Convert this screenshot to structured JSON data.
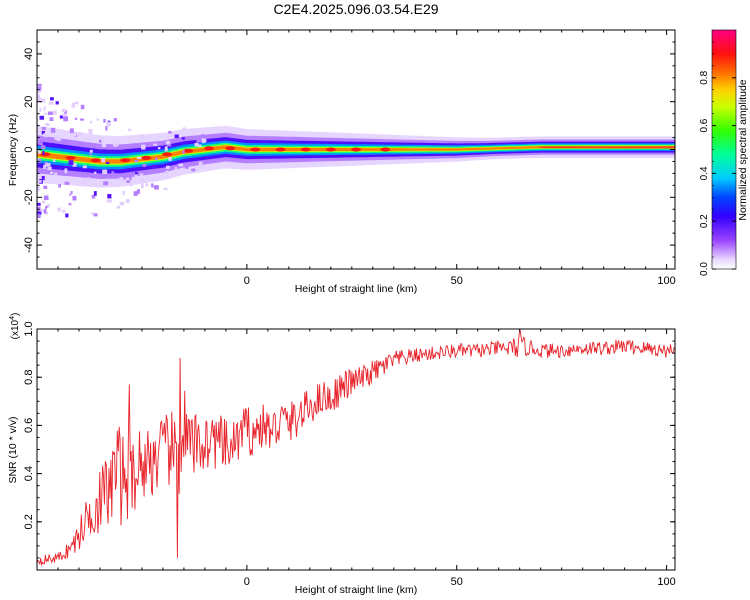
{
  "title": "C2E4.2025.096.03.54.E29",
  "chart_data": [
    {
      "type": "heatmap",
      "xlabel": "Height of straight line (km)",
      "ylabel": "Frequency (Hz)",
      "xlim": [
        -50,
        102
      ],
      "ylim": [
        -50,
        50
      ],
      "xticks": [
        0,
        50,
        100
      ],
      "yticks": [
        -40,
        -20,
        0,
        20,
        40
      ],
      "colorbar": {
        "label": "Normalized spectral amplitude",
        "range": [
          0,
          1
        ],
        "ticks": [
          "0.0",
          "0.2",
          "0.4",
          "0.6",
          "0.8"
        ],
        "colors": [
          "#ffffff",
          "#cc99ff",
          "#6600ff",
          "#0000ff",
          "#00ffff",
          "#00ff00",
          "#ffff00",
          "#ff8000",
          "#ff0000",
          "#ff0099"
        ]
      },
      "ridge": {
        "x": [
          -50,
          -45,
          -40,
          -35,
          -30,
          -25,
          -20,
          -15,
          -10,
          -5,
          0,
          5,
          10,
          20,
          30,
          40,
          50,
          60,
          70,
          80,
          90,
          102
        ],
        "freq": [
          -2,
          -3,
          -4,
          -5,
          -5,
          -4,
          -3,
          -1,
          0,
          1,
          0,
          0,
          0,
          0,
          0,
          0,
          0,
          0.5,
          1,
          1,
          1,
          1
        ]
      }
    },
    {
      "type": "line",
      "xlabel": "Height of straight line (km)",
      "ylabel": "SNR (10 * v/v)",
      "y_multiplier": "(x10",
      "y_multiplier_exp": "4",
      "y_multiplier_close": ")",
      "xlim": [
        -50,
        102
      ],
      "ylim": [
        0,
        1.0
      ],
      "xticks": [
        0,
        50,
        100
      ],
      "yticks": [
        "0.2",
        "0.4",
        "0.6",
        "0.8",
        "1.0"
      ],
      "series": [
        {
          "color": "#e8232a",
          "x": [
            -50,
            -45,
            -42,
            -40,
            -38,
            -36,
            -34,
            -32,
            -31,
            -30,
            -28,
            -26,
            -24,
            -22,
            -20,
            -18,
            -16,
            -15,
            -14,
            -12,
            -10,
            -8,
            -6,
            -4,
            -2,
            0,
            2,
            4,
            6,
            8,
            10,
            12,
            15,
            18,
            20,
            22,
            25,
            28,
            30,
            35,
            40,
            45,
            50,
            55,
            60,
            63,
            65,
            68,
            70,
            75,
            80,
            85,
            90,
            95,
            100,
            102
          ],
          "mean": [
            0.04,
            0.05,
            0.09,
            0.14,
            0.22,
            0.28,
            0.3,
            0.36,
            0.45,
            0.38,
            0.4,
            0.43,
            0.45,
            0.46,
            0.48,
            0.5,
            0.46,
            0.6,
            0.5,
            0.52,
            0.53,
            0.54,
            0.52,
            0.5,
            0.55,
            0.58,
            0.57,
            0.6,
            0.57,
            0.62,
            0.61,
            0.63,
            0.68,
            0.72,
            0.71,
            0.75,
            0.78,
            0.8,
            0.82,
            0.87,
            0.89,
            0.9,
            0.91,
            0.91,
            0.92,
            0.92,
            0.93,
            0.92,
            0.91,
            0.91,
            0.92,
            0.92,
            0.93,
            0.92,
            0.91,
            0.92
          ],
          "spread": [
            0.02,
            0.02,
            0.04,
            0.06,
            0.1,
            0.14,
            0.16,
            0.18,
            0.2,
            0.2,
            0.18,
            0.17,
            0.16,
            0.15,
            0.16,
            0.16,
            0.18,
            0.2,
            0.16,
            0.13,
            0.13,
            0.12,
            0.12,
            0.1,
            0.1,
            0.11,
            0.1,
            0.09,
            0.09,
            0.1,
            0.09,
            0.08,
            0.08,
            0.07,
            0.07,
            0.07,
            0.06,
            0.05,
            0.05,
            0.04,
            0.03,
            0.03,
            0.03,
            0.03,
            0.03,
            0.04,
            0.05,
            0.03,
            0.03,
            0.03,
            0.03,
            0.03,
            0.03,
            0.03,
            0.03,
            0.03
          ],
          "spikes": [
            {
              "x": -28,
              "y": 0.77
            },
            {
              "x": -16,
              "y": 0.88
            },
            {
              "x": -16.5,
              "y": 0.05
            },
            {
              "x": 65,
              "y": 1.0
            }
          ]
        }
      ]
    }
  ]
}
